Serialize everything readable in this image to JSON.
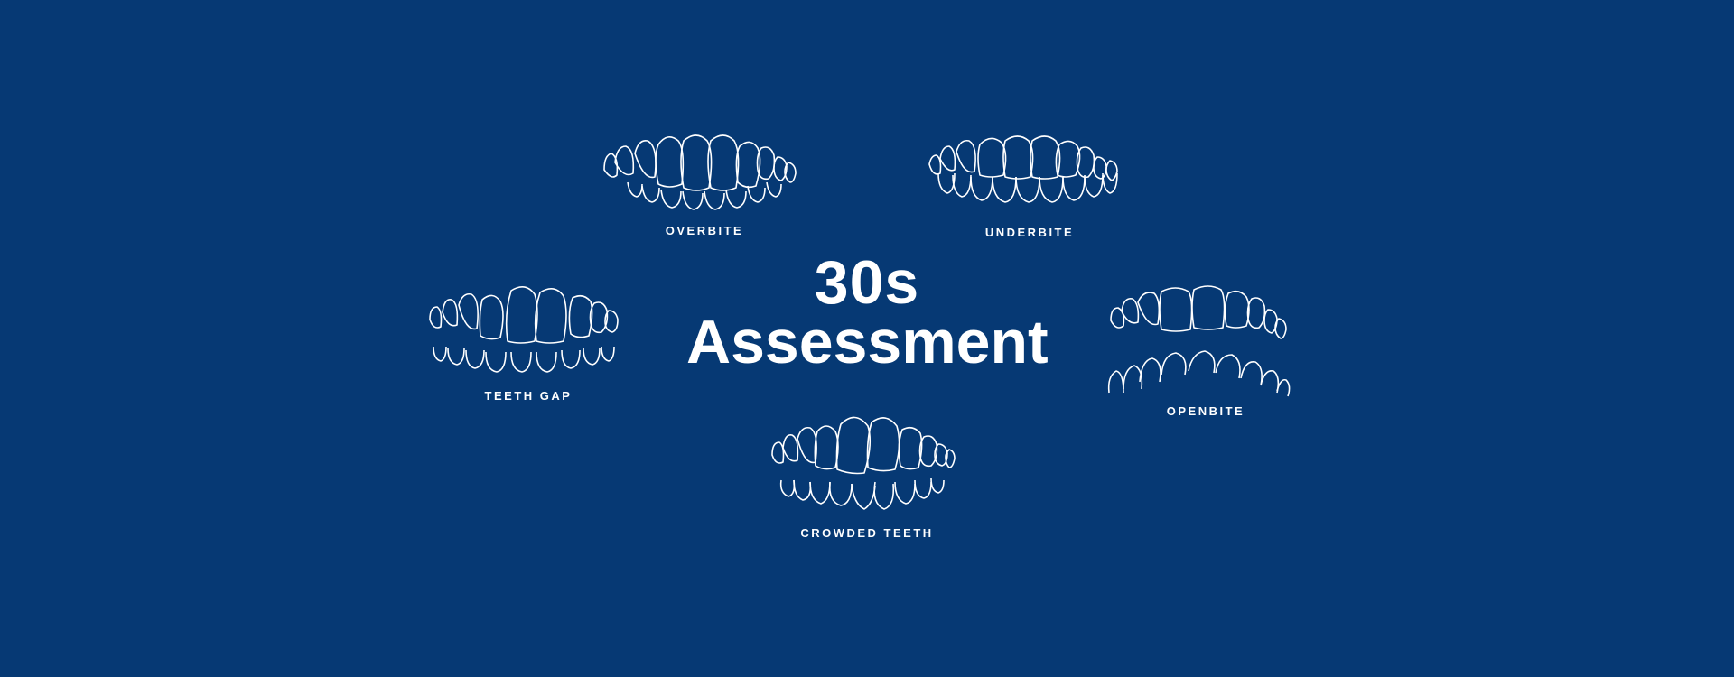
{
  "background_color": "#063974",
  "title": {
    "line1": "30s",
    "line2": "Assessment"
  },
  "conditions": [
    {
      "label": "OVERBITE",
      "icon": "overbite-teeth-icon"
    },
    {
      "label": "UNDERBITE",
      "icon": "underbite-teeth-icon"
    },
    {
      "label": "TEETH GAP",
      "icon": "teeth-gap-icon"
    },
    {
      "label": "OPENBITE",
      "icon": "openbite-teeth-icon"
    },
    {
      "label": "CROWDED TEETH",
      "icon": "crowded-teeth-icon"
    }
  ]
}
